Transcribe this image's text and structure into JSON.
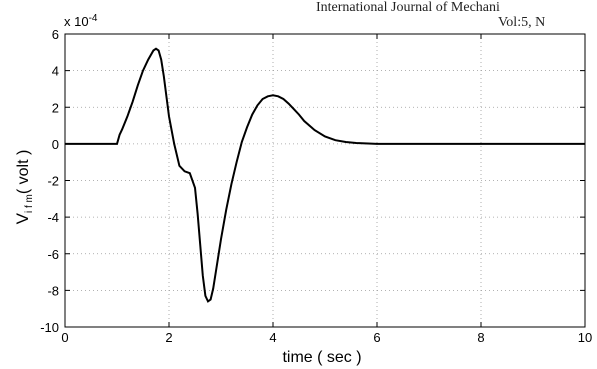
{
  "header": {
    "line1": "International Journal of Mechani",
    "line2": "Vol:5, N"
  },
  "chart_data": {
    "type": "line",
    "title": "",
    "xlabel": "time ( sec )",
    "ylabel_main": "V",
    "ylabel_sub": "i f m",
    "ylabel_unit": "( volt )",
    "y_multiplier_base": "x 10",
    "y_multiplier_exp": "-4",
    "xlim": [
      0,
      10
    ],
    "ylim": [
      -10,
      6
    ],
    "x_ticks": [
      0,
      2,
      4,
      6,
      8,
      10
    ],
    "y_ticks": [
      6,
      4,
      2,
      0,
      -2,
      -4,
      -6,
      -8,
      -10
    ],
    "grid": true,
    "series": [
      {
        "color": "#000000",
        "x": [
          0,
          0.5,
          1.0,
          1.05,
          1.1,
          1.2,
          1.3,
          1.4,
          1.5,
          1.6,
          1.7,
          1.75,
          1.8,
          1.85,
          1.9,
          2.0,
          2.1,
          2.2,
          2.3,
          2.4,
          2.5,
          2.55,
          2.6,
          2.65,
          2.7,
          2.75,
          2.8,
          2.85,
          2.9,
          3.0,
          3.1,
          3.2,
          3.3,
          3.4,
          3.5,
          3.6,
          3.7,
          3.8,
          3.9,
          4.0,
          4.1,
          4.2,
          4.3,
          4.4,
          4.5,
          4.6,
          4.8,
          5.0,
          5.2,
          5.4,
          5.6,
          6.0,
          6.5,
          7.0,
          8.0,
          9.0,
          10.0
        ],
        "y": [
          0,
          0,
          0,
          0.5,
          0.8,
          1.5,
          2.3,
          3.2,
          4.0,
          4.6,
          5.1,
          5.2,
          5.1,
          4.6,
          3.7,
          1.5,
          0.0,
          -1.2,
          -1.5,
          -1.6,
          -2.4,
          -3.8,
          -5.5,
          -7.2,
          -8.3,
          -8.6,
          -8.5,
          -7.9,
          -7.0,
          -5.2,
          -3.6,
          -2.2,
          -1.0,
          0.1,
          0.9,
          1.6,
          2.1,
          2.45,
          2.6,
          2.65,
          2.6,
          2.45,
          2.2,
          1.9,
          1.6,
          1.25,
          0.75,
          0.4,
          0.2,
          0.1,
          0.05,
          0.0,
          0,
          0,
          0,
          0,
          0
        ]
      }
    ]
  }
}
